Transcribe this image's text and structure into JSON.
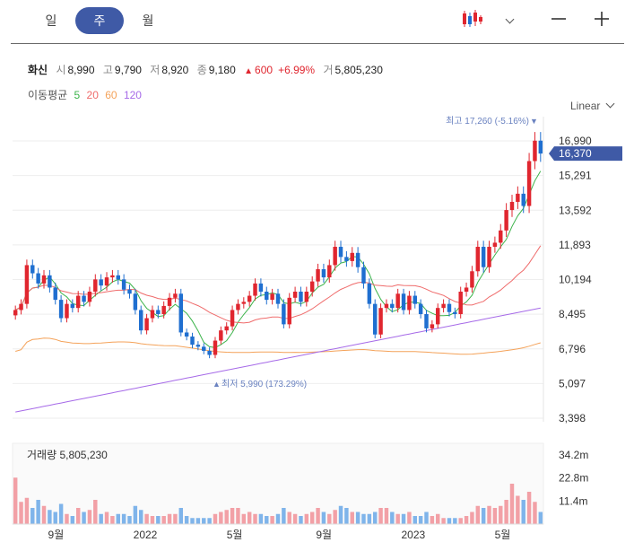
{
  "tabs": [
    {
      "label": "일",
      "active": false
    },
    {
      "label": "주",
      "active": true
    },
    {
      "label": "월",
      "active": false
    }
  ],
  "toolbar": {
    "chart_type_icon": "candlestick-icon",
    "dropdown_icon": "chevron-down-icon",
    "zoom_out": "—",
    "zoom_in": "+"
  },
  "quote": {
    "name": "화신",
    "open_label": "시",
    "open": "8,990",
    "high_label": "고",
    "high": "9,790",
    "low_label": "저",
    "low": "8,920",
    "close_label": "종",
    "close": "9,180",
    "change_arrow": "▲",
    "change": "600",
    "change_pct": "+6.99%",
    "volume_label": "거",
    "volume": "5,805,230"
  },
  "moving_average": {
    "label": "이동평균",
    "periods": [
      "5",
      "20",
      "60",
      "120"
    ],
    "colors": [
      "#3cb44b",
      "#ef6b6b",
      "#f4a259",
      "#a66ae8"
    ]
  },
  "scale_selector": "Linear",
  "colors": {
    "up": "#e0262f",
    "down": "#1f6fd0",
    "current_badge": "#3f5aa6",
    "annotation": "#6a82c0",
    "volume_up": "#f2a0a6",
    "volume_down": "#7fb4ea"
  },
  "chart_data": {
    "type": "candlestick",
    "interval": "weekly",
    "price_axis": {
      "ticks": [
        "16,990",
        "15,291",
        "13,592",
        "11,893",
        "10,194",
        "8,495",
        "6,796",
        "5,097",
        "3,398"
      ],
      "tick_values": [
        16990,
        15291,
        13592,
        11893,
        10194,
        8495,
        6796,
        5097,
        3398
      ]
    },
    "current_price_label": "16,370",
    "current_price": 16370,
    "max_annotation": {
      "text": "최고 17,260 (-5.16%)",
      "arrow": "▼",
      "value": 17260
    },
    "min_annotation": {
      "text": "최저 5,990 (173.29%)",
      "arrow": "▲",
      "value": 5990
    },
    "time_axis": {
      "labels": [
        "9월",
        "2022",
        "5월",
        "9월",
        "2023",
        "5월"
      ],
      "positions": [
        17,
        52,
        87,
        122,
        157,
        192
      ]
    },
    "volume_label": "거래량 5,805,230",
    "volume_axis": {
      "ticks": [
        "34.2m",
        "22.8m",
        "11.4m"
      ],
      "tick_values": [
        34200000,
        22800000,
        11400000
      ]
    },
    "closes": [
      8700,
      9000,
      10900,
      10500,
      10000,
      10400,
      9800,
      9200,
      8300,
      9000,
      8800,
      9400,
      9100,
      9600,
      10200,
      9900,
      10300,
      10400,
      10200,
      9700,
      9500,
      8700,
      7700,
      8300,
      8700,
      8500,
      8900,
      9300,
      9500,
      7600,
      7400,
      7000,
      6900,
      6700,
      6500,
      7200,
      7700,
      7900,
      8700,
      9000,
      9100,
      9400,
      10000,
      9600,
      9200,
      9500,
      9000,
      8000,
      9300,
      9600,
      9100,
      9600,
      10100,
      10700,
      10300,
      10900,
      11800,
      11300,
      11100,
      11500,
      10800,
      10000,
      9000,
      7500,
      8800,
      9000,
      8800,
      9500,
      8700,
      9400,
      9000,
      8500,
      7800,
      8000,
      8800,
      9000,
      8600,
      8500,
      9600,
      9800,
      10600,
      11800,
      10800,
      11800,
      12000,
      12600,
      13600,
      14000,
      14400,
      13800,
      16000,
      17000,
      16370
    ],
    "volumes_m": [
      23,
      11,
      13,
      8,
      12,
      9,
      7,
      6,
      10,
      5,
      4,
      8,
      6,
      7,
      12,
      5,
      6,
      4,
      5,
      5,
      4,
      9,
      7,
      5,
      4,
      4,
      4,
      5,
      5,
      8,
      4,
      3,
      3,
      3,
      3,
      5,
      6,
      7,
      8,
      8,
      5,
      6,
      5,
      5,
      4,
      4,
      5,
      8,
      6,
      5,
      4,
      5,
      6,
      8,
      6,
      5,
      7,
      9,
      8,
      6,
      6,
      5,
      5,
      6,
      8,
      8,
      6,
      5,
      5,
      6,
      4,
      4,
      6,
      4,
      5,
      3,
      3,
      3,
      3,
      4,
      6,
      9,
      8,
      9,
      8,
      9,
      12,
      20,
      14,
      12,
      16,
      11,
      6
    ]
  }
}
